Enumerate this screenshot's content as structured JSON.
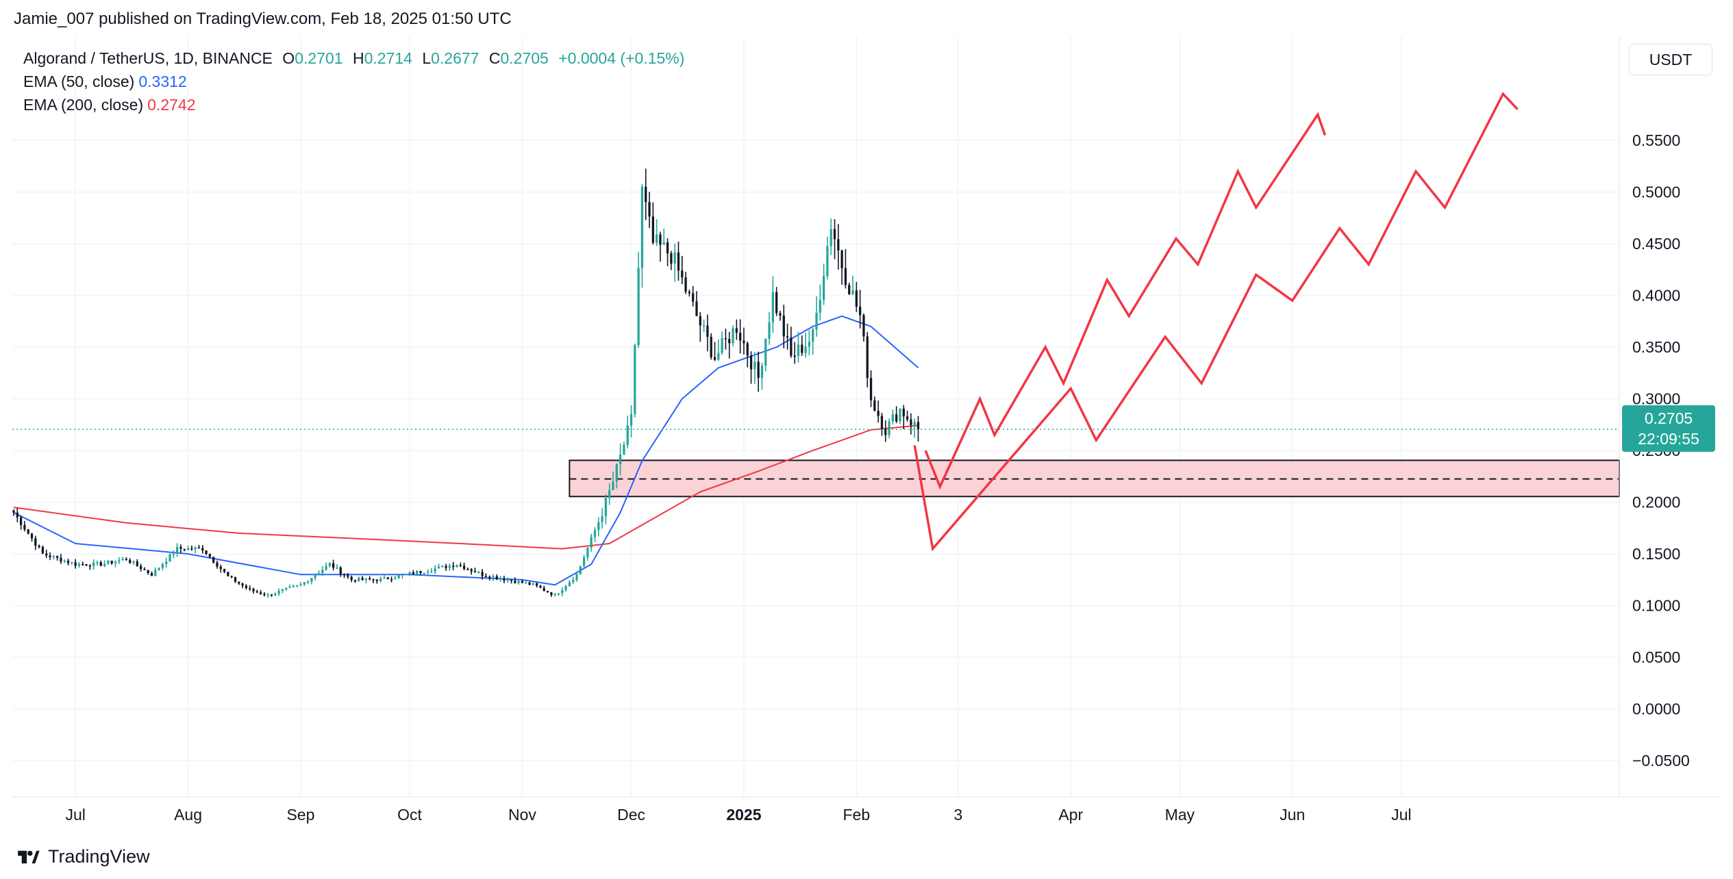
{
  "publisher": "Jamie_007 published on TradingView.com, Feb 18, 2025 01:50 UTC",
  "legend": {
    "symbol": "Algorand / TetherUS, 1D, BINANCE",
    "open_label": "O",
    "open": "0.2701",
    "high_label": "H",
    "high": "0.2714",
    "low_label": "L",
    "low": "0.2677",
    "close_label": "C",
    "close": "0.2705",
    "change": "+0.0004 (+0.15%)",
    "ema50_label": "EMA (50, close)",
    "ema50_value": "0.3312",
    "ema200_label": "EMA (200, close)",
    "ema200_value": "0.2742"
  },
  "currency": "USDT",
  "price_tag": {
    "price": "0.2705",
    "countdown": "22:09:55"
  },
  "footer_logo": "TradingView",
  "colors": {
    "up": "#26a69a",
    "down": "#131722",
    "ema50": "#2962ff",
    "ema200": "#f23645",
    "drawing": "#f23645",
    "zone_fill": "#fbd3d6"
  },
  "chart_data": {
    "type": "candlestick",
    "y_axis": {
      "ticks": [
        "0.5500",
        "0.5000",
        "0.4500",
        "0.4000",
        "0.3500",
        "0.3000",
        "0.2500",
        "0.2000",
        "0.1500",
        "0.1000",
        "0.0500",
        "0.0000",
        "−0.0500"
      ],
      "min": -0.085,
      "max": 0.65
    },
    "x_axis": {
      "ticks": [
        "Jul",
        "Aug",
        "Sep",
        "Oct",
        "Nov",
        "Dec",
        "2025",
        "Feb",
        "3",
        "Apr",
        "May",
        "Jun",
        "Jul"
      ]
    },
    "series": [
      {
        "name": "Algorand / TetherUS",
        "kind": "candles",
        "anchors": [
          [
            "2024-06-14",
            0.19
          ],
          [
            "2024-06-22",
            0.15
          ],
          [
            "2024-07-01",
            0.14
          ],
          [
            "2024-07-08",
            0.14
          ],
          [
            "2024-07-15",
            0.145
          ],
          [
            "2024-07-22",
            0.13
          ],
          [
            "2024-07-29",
            0.155
          ],
          [
            "2024-08-05",
            0.155
          ],
          [
            "2024-08-12",
            0.128
          ],
          [
            "2024-08-18",
            0.115
          ],
          [
            "2024-08-23",
            0.11
          ],
          [
            "2024-09-01",
            0.12
          ],
          [
            "2024-09-09",
            0.14
          ],
          [
            "2024-09-15",
            0.125
          ],
          [
            "2024-09-23",
            0.125
          ],
          [
            "2024-09-30",
            0.13
          ],
          [
            "2024-10-07",
            0.135
          ],
          [
            "2024-10-14",
            0.14
          ],
          [
            "2024-10-21",
            0.13
          ],
          [
            "2024-10-28",
            0.125
          ],
          [
            "2024-11-04",
            0.12
          ],
          [
            "2024-11-10",
            0.11
          ],
          [
            "2024-11-16",
            0.13
          ],
          [
            "2024-11-23",
            0.19
          ],
          [
            "2024-11-26",
            0.22
          ],
          [
            "2024-12-01",
            0.28
          ],
          [
            "2024-12-04",
            0.5
          ],
          [
            "2024-12-07",
            0.45
          ],
          [
            "2024-12-12",
            0.44
          ],
          [
            "2024-12-19",
            0.38
          ],
          [
            "2024-12-24",
            0.34
          ],
          [
            "2024-12-30",
            0.37
          ],
          [
            "2025-01-05",
            0.32
          ],
          [
            "2025-01-09",
            0.4
          ],
          [
            "2025-01-14",
            0.34
          ],
          [
            "2025-01-20",
            0.36
          ],
          [
            "2025-01-25",
            0.47
          ],
          [
            "2025-01-28",
            0.43
          ],
          [
            "2025-02-02",
            0.38
          ],
          [
            "2025-02-05",
            0.3
          ],
          [
            "2025-02-09",
            0.27
          ],
          [
            "2025-02-13",
            0.29
          ],
          [
            "2025-02-18",
            0.2705
          ]
        ]
      },
      {
        "name": "EMA (50, close)",
        "kind": "line",
        "points": [
          [
            "2024-06-14",
            0.19
          ],
          [
            "2024-07-01",
            0.16
          ],
          [
            "2024-08-01",
            0.15
          ],
          [
            "2024-09-01",
            0.13
          ],
          [
            "2024-10-01",
            0.13
          ],
          [
            "2024-11-01",
            0.125
          ],
          [
            "2024-11-10",
            0.12
          ],
          [
            "2024-11-20",
            0.14
          ],
          [
            "2024-11-28",
            0.19
          ],
          [
            "2024-12-04",
            0.24
          ],
          [
            "2024-12-15",
            0.3
          ],
          [
            "2024-12-25",
            0.33
          ],
          [
            "2025-01-10",
            0.35
          ],
          [
            "2025-01-20",
            0.37
          ],
          [
            "2025-01-28",
            0.38
          ],
          [
            "2025-02-05",
            0.37
          ],
          [
            "2025-02-18",
            0.33
          ]
        ]
      },
      {
        "name": "EMA (200, close)",
        "kind": "line",
        "points": [
          [
            "2024-06-14",
            0.195
          ],
          [
            "2024-07-15",
            0.18
          ],
          [
            "2024-08-15",
            0.17
          ],
          [
            "2024-09-15",
            0.165
          ],
          [
            "2024-10-15",
            0.16
          ],
          [
            "2024-11-12",
            0.155
          ],
          [
            "2024-11-25",
            0.16
          ],
          [
            "2024-12-05",
            0.18
          ],
          [
            "2024-12-20",
            0.21
          ],
          [
            "2025-01-05",
            0.23
          ],
          [
            "2025-01-20",
            0.25
          ],
          [
            "2025-02-05",
            0.27
          ],
          [
            "2025-02-18",
            0.2742
          ]
        ]
      }
    ],
    "drawings": {
      "support_zone": {
        "from": "2024-11-14",
        "to": "2025-09-01",
        "top": 0.2405,
        "bottom": 0.2055,
        "mid": 0.2225
      },
      "projection_lower": [
        [
          "2025-02-17",
          0.255
        ],
        [
          "2025-02-22",
          0.155
        ],
        [
          "2025-04-01",
          0.31
        ],
        [
          "2025-04-08",
          0.26
        ],
        [
          "2025-04-27",
          0.36
        ],
        [
          "2025-05-07",
          0.315
        ],
        [
          "2025-05-22",
          0.42
        ],
        [
          "2025-06-01",
          0.395
        ],
        [
          "2025-06-14",
          0.465
        ],
        [
          "2025-06-22",
          0.43
        ],
        [
          "2025-07-05",
          0.52
        ],
        [
          "2025-07-13",
          0.485
        ],
        [
          "2025-07-29",
          0.595
        ],
        [
          "2025-08-02",
          0.58
        ]
      ],
      "projection_upper": [
        [
          "2025-02-20",
          0.25
        ],
        [
          "2025-02-24",
          0.215
        ],
        [
          "2025-03-07",
          0.3
        ],
        [
          "2025-03-11",
          0.265
        ],
        [
          "2025-03-25",
          0.35
        ],
        [
          "2025-03-30",
          0.315
        ],
        [
          "2025-04-11",
          0.415
        ],
        [
          "2025-04-17",
          0.38
        ],
        [
          "2025-04-30",
          0.455
        ],
        [
          "2025-05-06",
          0.43
        ],
        [
          "2025-05-17",
          0.52
        ],
        [
          "2025-05-22",
          0.485
        ],
        [
          "2025-06-08",
          0.575
        ],
        [
          "2025-06-10",
          0.555
        ]
      ]
    }
  }
}
